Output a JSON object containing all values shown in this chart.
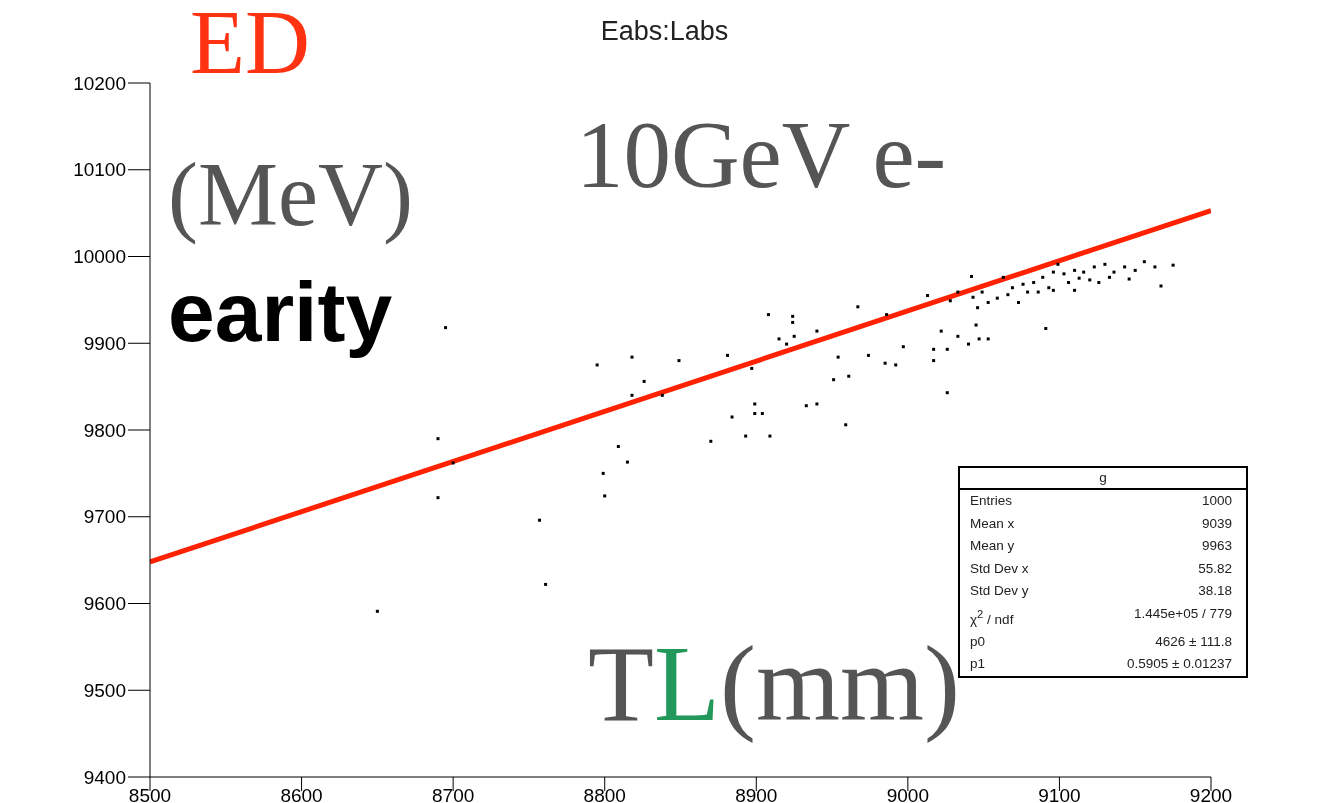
{
  "chart_data": {
    "type": "scatter",
    "title": "Eabs:Labs",
    "xlabel": "TL(mm)",
    "ylabel": "ED (MeV)",
    "xlim": [
      8500,
      9200
    ],
    "xticks": [
      8500,
      8600,
      8700,
      8800,
      8900,
      9000,
      9100,
      9200
    ],
    "ylim": [
      9400,
      10200
    ],
    "yticks": [
      9400,
      9500,
      9600,
      9700,
      9800,
      9900,
      10000,
      10100,
      10200
    ],
    "grid": false,
    "legend": false,
    "series": [
      {
        "color": "#000000",
        "marker": "square",
        "x": [
          8695,
          8795,
          8690,
          8700,
          8799,
          8800,
          8690,
          8757,
          8761,
          8650,
          8818,
          8849,
          8826,
          8818,
          8838,
          8809,
          8815,
          8908,
          8924,
          8924,
          8915,
          8920,
          8925,
          8940,
          8881,
          8897,
          8899,
          8899,
          8904,
          8884,
          8933,
          8940,
          8870,
          8893,
          8909,
          8959,
          8951,
          8961,
          8954,
          8967,
          8986,
          8974,
          8985,
          8992,
          8997,
          9026,
          9013,
          9017,
          9026,
          9017,
          9022,
          9033,
          9028,
          9042,
          9040,
          9047,
          9053,
          9033,
          9045,
          9096,
          9103,
          9089,
          9110,
          9116,
          9083,
          9076,
          9069,
          9123,
          9130,
          9099,
          9093,
          9106,
          9113,
          9120,
          9079,
          9066,
          9059,
          9136,
          9143,
          9150,
          9156,
          9073,
          9086,
          9096,
          9110,
          9126,
          9133,
          9053,
          9046,
          9049,
          9063,
          9043,
          9146,
          9163,
          9175,
          9167,
          9091
        ],
        "values": [
          9918,
          9875,
          9790,
          9762,
          9750,
          9724,
          9722,
          9696,
          9622,
          9591,
          9884,
          9880,
          9856,
          9840,
          9840,
          9781,
          9763,
          9933,
          9931,
          9924,
          9905,
          9899,
          9908,
          9914,
          9886,
          9871,
          9830,
          9819,
          9819,
          9815,
          9828,
          9830,
          9787,
          9793,
          9793,
          9806,
          9858,
          9862,
          9884,
          9942,
          9933,
          9886,
          9877,
          9875,
          9896,
          9843,
          9955,
          9880,
          9893,
          9893,
          9914,
          9959,
          9949,
          9977,
          9899,
          9905,
          9905,
          9908,
          9921,
          9982,
          9980,
          9976,
          9984,
          9982,
          9970,
          9968,
          9964,
          9988,
          9991,
          9991,
          9964,
          9970,
          9975,
          9973,
          9959,
          9956,
          9952,
          9982,
          9988,
          9984,
          9994,
          9947,
          9959,
          9961,
          9961,
          9970,
          9976,
          9947,
          9941,
          9959,
          9976,
          9953,
          9974,
          9988,
          9990,
          9966,
          9917
        ]
      },
      {
        "type": "line",
        "color": "#ff2200",
        "x": [
          8500,
          9200
        ],
        "values": [
          9648,
          10053
        ]
      }
    ],
    "annotations": [
      "10GeV e-",
      "earity",
      "g",
      "Entries",
      "1000",
      "Mean x",
      "9039",
      "Mean y",
      "9963",
      "Std Dev x",
      "55.82",
      "Std Dev y",
      "38.18",
      "χ$^{2}$ / ndf",
      "1.445e+05 / 779",
      "p0",
      "4626 ± 111.8",
      "p1",
      "0.5905 ± 0.01237"
    ]
  }
}
